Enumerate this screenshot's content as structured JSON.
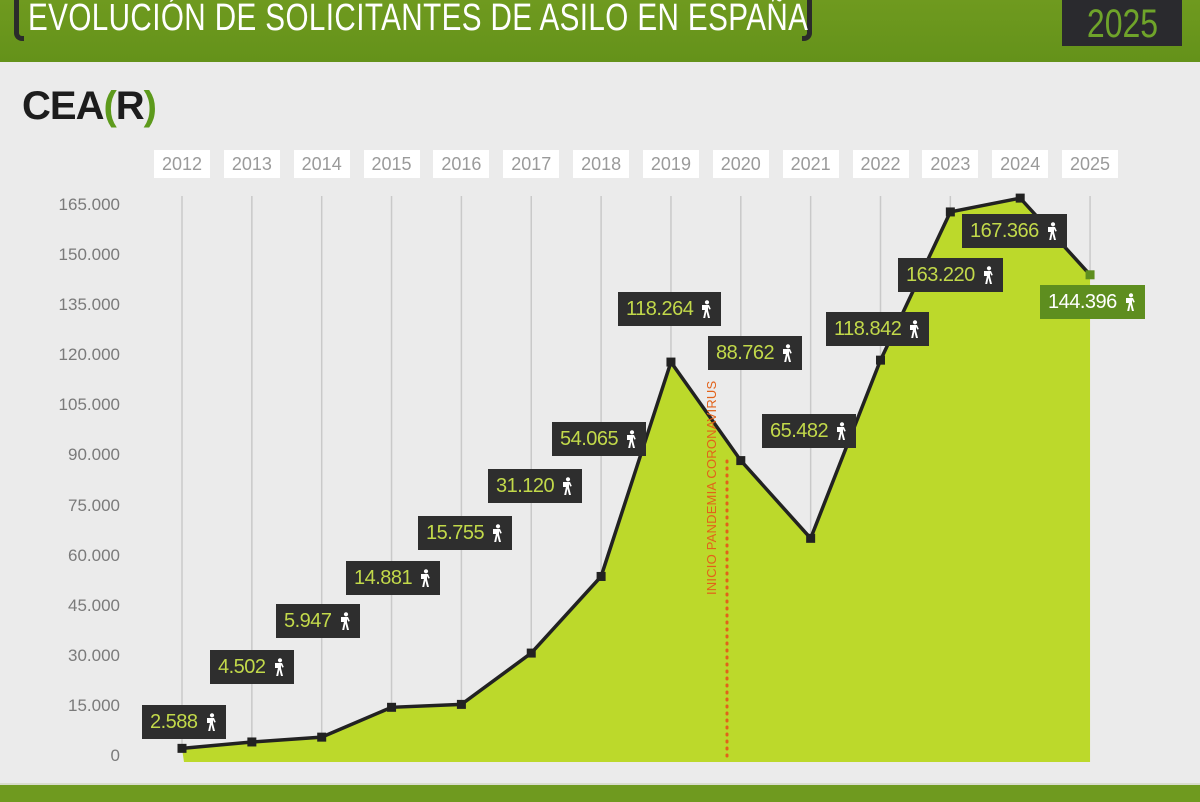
{
  "header": {
    "title": "EVOLUCIÓN DE SOLICITANTES DE ASILO EN ESPAÑA",
    "year": "2025"
  },
  "logo": {
    "prefix": "CEA",
    "open": "(",
    "letter": "R",
    "close": ")"
  },
  "annotation": "INICIO PANDEMIA CORONAVIRUS",
  "colors": {
    "header_green": "#6f9a1f",
    "area_fill": "#bcd92b",
    "line": "#222222",
    "label_bg": "#2e2e2e",
    "label_text": "#c2d94a",
    "current_label_bg": "#5e8e1f",
    "annotation": "#e2621a"
  },
  "chart_data": {
    "type": "area",
    "title": "EVOLUCIÓN DE SOLICITANTES DE ASILO EN ESPAÑA",
    "xlabel": "",
    "ylabel": "",
    "categories": [
      "2012",
      "2013",
      "2014",
      "2015",
      "2016",
      "2017",
      "2018",
      "2019",
      "2020",
      "2021",
      "2022",
      "2023",
      "2024",
      "2025"
    ],
    "series": [
      {
        "name": "Solicitantes de asilo",
        "values": [
          2588,
          4502,
          5947,
          14881,
          15755,
          31120,
          54065,
          118264,
          88762,
          65482,
          118842,
          163220,
          167366,
          144396
        ],
        "labels": [
          "2.588",
          "4.502",
          "5.947",
          "14.881",
          "15.755",
          "31.120",
          "54.065",
          "118.264",
          "88.762",
          "65.482",
          "118.842",
          "163.220",
          "167.366",
          "144.396"
        ]
      }
    ],
    "yticks": [
      "0",
      "15.000",
      "30.000",
      "45.000",
      "60.000",
      "75.000",
      "90.000",
      "105.000",
      "120.000",
      "135.000",
      "150.000",
      "165.000"
    ],
    "ylim": [
      0,
      165000
    ],
    "grid": "vertical lines per year",
    "annotations": [
      {
        "x": "2020",
        "text": "INICIO PANDEMIA CORONAVIRUS",
        "style": "dotted orange vertical line"
      }
    ],
    "legend": "none"
  }
}
